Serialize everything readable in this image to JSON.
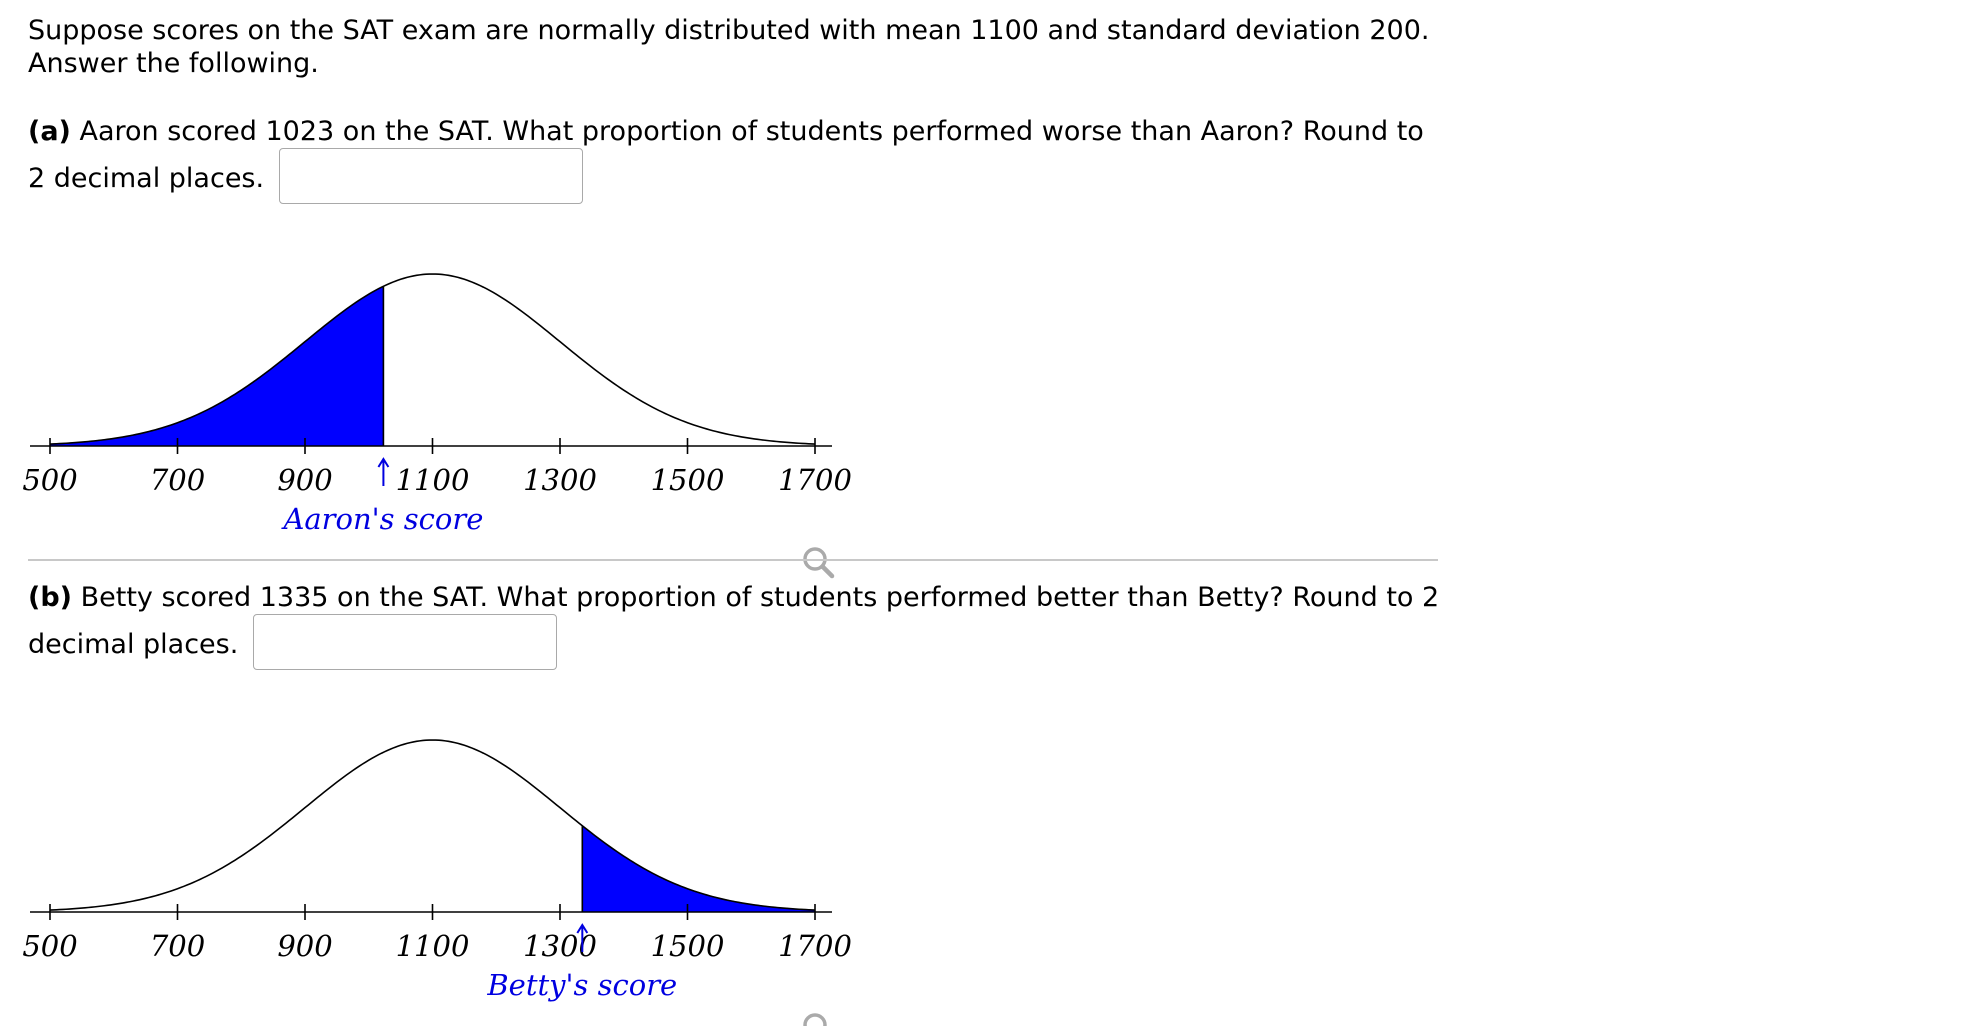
{
  "intro": {
    "line1": "Suppose scores on the SAT exam are normally distributed with mean 1100 and standard deviation 200.",
    "line2": "Answer the following."
  },
  "distribution": {
    "mean": 1100,
    "sd": 200
  },
  "part_a": {
    "label": "(a)",
    "text": "Aaron scored 1023 on the SAT. What proportion of students performed worse than Aaron? Round to 2 decimal places.",
    "input_value": "",
    "graph": {
      "x_min": 500,
      "x_max": 1700,
      "ticks": [
        "500",
        "700",
        "900",
        "1100",
        "1300",
        "1500",
        "1700"
      ],
      "tick_values": [
        500,
        700,
        900,
        1100,
        1300,
        1500,
        1700
      ],
      "score": 1023,
      "shade": "left",
      "score_label": "Aaron's score",
      "shade_color": "#0000ff",
      "marker_color": "#0000e0",
      "zoom_icon": "magnifier-icon"
    }
  },
  "part_b": {
    "label": "(b)",
    "text": "Betty scored 1335 on the SAT. What proportion of students performed better than Betty? Round to 2 decimal places.",
    "input_value": "",
    "graph": {
      "x_min": 500,
      "x_max": 1700,
      "ticks": [
        "500",
        "700",
        "900",
        "1100",
        "1300",
        "1500",
        "1700"
      ],
      "tick_values": [
        500,
        700,
        900,
        1100,
        1300,
        1500,
        1700
      ],
      "score": 1335,
      "shade": "right",
      "score_label": "Betty's score",
      "shade_color": "#0000ff",
      "marker_color": "#0000e0",
      "zoom_icon": "magnifier-icon"
    }
  }
}
